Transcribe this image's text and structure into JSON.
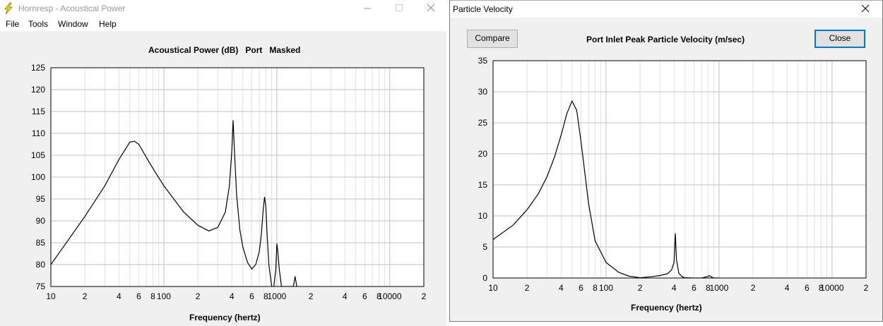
{
  "left_window": {
    "title": "Hornresp - Acoustical Power",
    "menu": [
      "File",
      "Tools",
      "Window",
      "Help"
    ],
    "min_icon": "minimize-icon",
    "max_icon": "maximize-icon",
    "close_icon": "close-icon",
    "chart_title": "Acoustical Power (dB)   Port   Masked",
    "xlabel": "Frequency (hertz)"
  },
  "right_window": {
    "title": "Particle Velocity",
    "close_icon": "close-icon",
    "compare_label": "Compare",
    "close_label": "Close",
    "chart_title": "Port Inlet Peak Particle Velocity (m/sec)",
    "xlabel": "Frequency (hertz)"
  },
  "chart_data": [
    {
      "type": "line",
      "title": "Acoustical Power (dB)   Port   Masked",
      "xlabel": "Frequency (hertz)",
      "ylabel": "",
      "xscale": "log",
      "xlim": [
        10,
        20000
      ],
      "ylim": [
        75,
        125
      ],
      "yticks": [
        75,
        80,
        85,
        90,
        95,
        100,
        105,
        110,
        115,
        120,
        125
      ],
      "xtick_labels": [
        "10",
        "2",
        "4",
        "6",
        "8",
        "100",
        "2",
        "4",
        "6",
        "8",
        "1000",
        "2",
        "4",
        "6",
        "8",
        "10000",
        "2"
      ],
      "grid": true,
      "line_color": "#000000",
      "x": [
        10,
        20,
        30,
        40,
        50,
        55,
        60,
        70,
        80,
        100,
        150,
        200,
        250,
        300,
        350,
        380,
        400,
        410,
        420,
        440,
        470,
        500,
        550,
        600,
        650,
        700,
        730,
        760,
        780,
        800,
        820,
        850,
        900,
        940,
        980,
        1000,
        1020,
        1050,
        1100,
        1150,
        1200,
        1250,
        1300,
        1350,
        1400,
        1450,
        1500
      ],
      "y": [
        80,
        91,
        98,
        104,
        108,
        108.2,
        107.5,
        104.5,
        102,
        98,
        92,
        89,
        87.7,
        88.5,
        92,
        98,
        106,
        113,
        107,
        96,
        88,
        84,
        80.5,
        79,
        80,
        83,
        87,
        93,
        95.5,
        93,
        87,
        80,
        75,
        75,
        79,
        84.8,
        83,
        79,
        75,
        75,
        75,
        75,
        75,
        75,
        75,
        77.3,
        75
      ]
    },
    {
      "type": "line",
      "title": "Port Inlet Peak Particle Velocity (m/sec)",
      "xlabel": "Frequency (hertz)",
      "ylabel": "",
      "xscale": "log",
      "xlim": [
        10,
        20000
      ],
      "ylim": [
        0,
        35
      ],
      "yticks": [
        0,
        5,
        10,
        15,
        20,
        25,
        30,
        35
      ],
      "xtick_labels": [
        "10",
        "2",
        "4",
        "6",
        "8",
        "100",
        "2",
        "4",
        "6",
        "8",
        "1000",
        "2",
        "4",
        "6",
        "8",
        "10000",
        "2"
      ],
      "grid": true,
      "line_color": "#000000",
      "x": [
        10,
        15,
        20,
        25,
        30,
        35,
        40,
        45,
        50,
        55,
        60,
        70,
        80,
        100,
        130,
        160,
        200,
        250,
        300,
        350,
        380,
        400,
        410,
        420,
        440,
        470,
        500,
        600,
        700,
        800,
        820,
        850,
        900,
        1000
      ],
      "y": [
        6.2,
        8.5,
        11,
        13.5,
        16.3,
        19.5,
        23,
        26.5,
        28.5,
        27,
        22,
        12,
        6,
        2.5,
        0.9,
        0.3,
        0.05,
        0.2,
        0.4,
        0.7,
        1.3,
        2.5,
        7.2,
        3,
        0.8,
        0.2,
        0.05,
        0,
        0,
        0.25,
        0.4,
        0.2,
        0,
        0
      ]
    }
  ]
}
